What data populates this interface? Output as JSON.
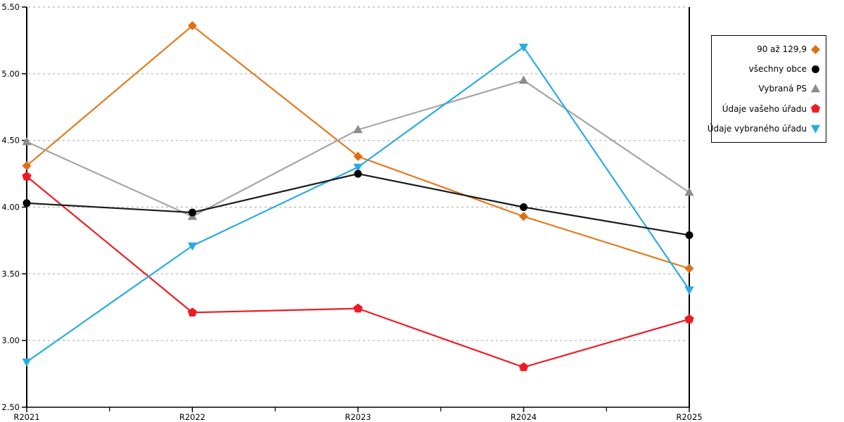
{
  "chart_data": {
    "type": "line",
    "categories": [
      "R2021",
      "R2022",
      "R2023",
      "R2024",
      "R2025"
    ],
    "series": [
      {
        "name": "90 až 129,9",
        "color": "#E37A1F",
        "marker_color": "#E06E14",
        "marker": "diamond",
        "values": [
          4.31,
          5.36,
          4.38,
          3.93,
          3.54
        ]
      },
      {
        "name": "všechny obce",
        "color": "#1A1A1A",
        "marker_color": "#000000",
        "marker": "circle",
        "values": [
          4.03,
          3.96,
          4.25,
          4.0,
          3.79
        ]
      },
      {
        "name": "Vybraná PS",
        "color": "#A6A6A6",
        "marker_color": "#8C8C8C",
        "marker": "triangle-up",
        "values": [
          4.49,
          3.93,
          4.58,
          4.95,
          4.11
        ]
      },
      {
        "name": "Údaje vašeho úřadu",
        "color": "#ED1C24",
        "marker_color": "#ED1C24",
        "marker": "pentagon",
        "values": [
          4.23,
          3.21,
          3.24,
          2.8,
          3.16
        ]
      },
      {
        "name": "Údaje vybraného úřadu",
        "color": "#29ABE2",
        "marker_color": "#29ABE2",
        "marker": "triangle-down",
        "values": [
          2.84,
          3.71,
          4.3,
          5.2,
          3.38
        ]
      }
    ],
    "draw_order": [
      0,
      2,
      3,
      4,
      1
    ],
    "title": "",
    "xlabel": "",
    "ylabel": "",
    "ylim": [
      2.5,
      5.5
    ],
    "ytick_step": 0.5,
    "ytick_labels": [
      "2.50",
      "3.00",
      "3.50",
      "4.00",
      "4.50",
      "5.00",
      "5.50"
    ],
    "grid": "dashed-horizontal",
    "legend_position": "right"
  },
  "colors": {
    "background": "#FFFFFF",
    "axis": "#000000",
    "gridline": "#BDBDBD",
    "tick_text": "#000000"
  }
}
